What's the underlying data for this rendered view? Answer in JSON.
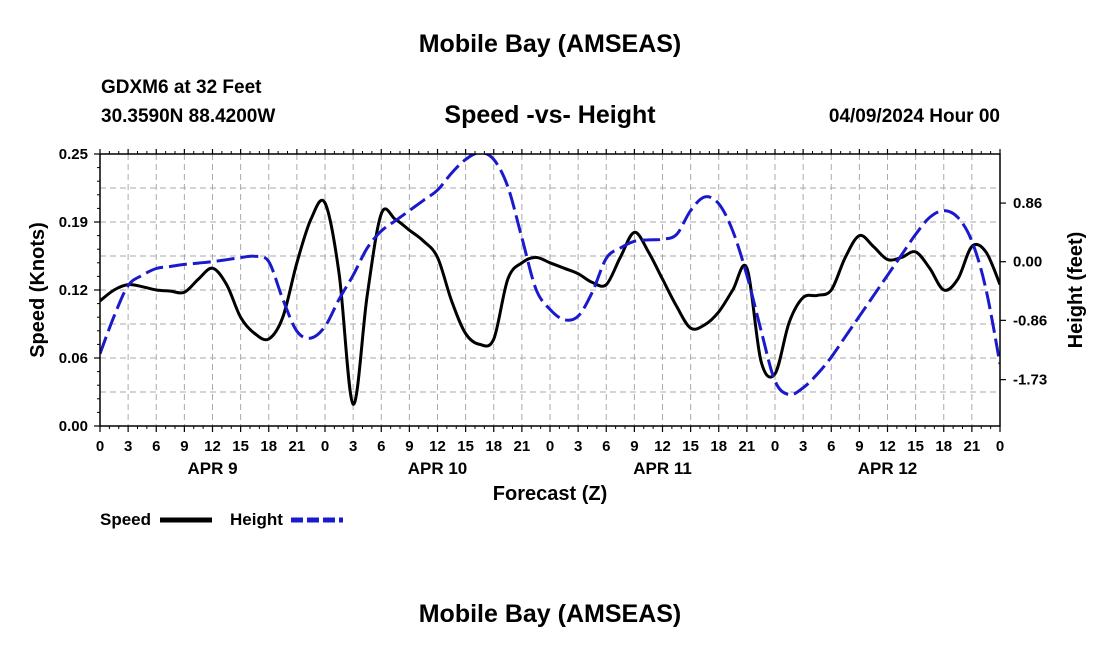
{
  "title": "Mobile Bay (AMSEAS)",
  "station": "GDXM6 at 32 Feet",
  "location": "30.3590N  88.4200W",
  "subtitle": "Speed -vs- Height",
  "run_time": "04/09/2024 Hour 00",
  "bottom_title": "Mobile Bay (AMSEAS)",
  "colors": {
    "speed": "#000000",
    "height": "#1a1acc",
    "grid": "#aaaaaa"
  },
  "chart_data": {
    "type": "line",
    "xlabel": "Forecast (Z)",
    "ylabel": "Speed (Knots)",
    "y2label": "Height (feet)",
    "xlim": [
      0,
      96
    ],
    "ylim": [
      0,
      0.25
    ],
    "y2lim": [
      -2.41,
      1.58
    ],
    "y_ticks": [
      "0.00",
      "0.06",
      "0.12",
      "0.19",
      "0.25"
    ],
    "y_tick_values": [
      0,
      0.0625,
      0.125,
      0.1875,
      0.25
    ],
    "y2_ticks": [
      "0.86",
      "0.00",
      "-0.86",
      "-1.73"
    ],
    "y2_tick_values": [
      0.86,
      0,
      -0.86,
      -1.73
    ],
    "x_tick_labels": [
      "0",
      "3",
      "6",
      "9",
      "12",
      "15",
      "18",
      "21",
      "0",
      "3",
      "6",
      "9",
      "12",
      "15",
      "18",
      "21",
      "0",
      "3",
      "6",
      "9",
      "12",
      "15",
      "18",
      "21",
      "0",
      "3",
      "6",
      "9",
      "12",
      "15",
      "18",
      "21",
      "0"
    ],
    "x_tick_hours": [
      0,
      3,
      6,
      9,
      12,
      15,
      18,
      21,
      24,
      27,
      30,
      33,
      36,
      39,
      42,
      45,
      48,
      51,
      54,
      57,
      60,
      63,
      66,
      69,
      72,
      75,
      78,
      81,
      84,
      87,
      90,
      93,
      96
    ],
    "day_labels": [
      {
        "label": "APR 9",
        "hour": 12
      },
      {
        "label": "APR 10",
        "hour": 36
      },
      {
        "label": "APR 11",
        "hour": 60
      },
      {
        "label": "APR 12",
        "hour": 84
      }
    ],
    "grid": true,
    "legend": [
      "Speed",
      "Height"
    ],
    "series": [
      {
        "name": "Speed",
        "axis": "left",
        "style": "solid",
        "x": [
          0,
          1.5,
          3,
          4.5,
          6,
          7.5,
          9,
          10.5,
          12,
          13.5,
          15,
          16.5,
          18,
          19.5,
          21,
          22.5,
          24,
          25.5,
          27,
          28.5,
          30,
          31.5,
          33,
          34.5,
          36,
          37.5,
          39,
          40.5,
          42,
          43.5,
          45,
          46.5,
          48,
          49.5,
          51,
          52.5,
          54,
          55.5,
          57,
          58.5,
          60,
          61.5,
          63,
          64.5,
          66,
          67.5,
          69,
          70.5,
          72,
          73.5,
          75,
          76.5,
          78,
          79.5,
          81,
          82.5,
          84,
          85.5,
          87,
          88.5,
          90,
          91.5,
          93,
          94.5,
          96
        ],
        "values": [
          0.115,
          0.125,
          0.13,
          0.128,
          0.125,
          0.124,
          0.123,
          0.135,
          0.145,
          0.13,
          0.1,
          0.085,
          0.08,
          0.1,
          0.15,
          0.19,
          0.205,
          0.14,
          0.02,
          0.12,
          0.195,
          0.19,
          0.18,
          0.17,
          0.155,
          0.115,
          0.085,
          0.075,
          0.08,
          0.135,
          0.15,
          0.155,
          0.15,
          0.145,
          0.14,
          0.132,
          0.13,
          0.155,
          0.178,
          0.16,
          0.135,
          0.11,
          0.09,
          0.093,
          0.105,
          0.125,
          0.145,
          0.06,
          0.048,
          0.095,
          0.118,
          0.12,
          0.125,
          0.155,
          0.175,
          0.165,
          0.153,
          0.155,
          0.16,
          0.145,
          0.125,
          0.135,
          0.165,
          0.16,
          0.13
        ]
      },
      {
        "name": "Height",
        "axis": "right",
        "style": "dashed",
        "x": [
          0,
          1.5,
          3,
          4.5,
          6,
          7.5,
          9,
          10.5,
          12,
          13.5,
          15,
          16.5,
          18,
          19.5,
          21,
          22.5,
          24,
          25.5,
          27,
          28.5,
          30,
          31.5,
          33,
          34.5,
          36,
          37.5,
          39,
          40.5,
          42,
          43.5,
          45,
          46.5,
          48,
          49.5,
          51,
          52.5,
          54,
          55.5,
          57,
          58.5,
          60,
          61.5,
          63,
          64.5,
          66,
          67.5,
          69,
          70.5,
          72,
          73.5,
          75,
          76.5,
          78,
          79.5,
          81,
          82.5,
          84,
          85.5,
          87,
          88.5,
          90,
          91.5,
          93,
          94.5,
          96
        ],
        "values": [
          -1.35,
          -0.8,
          -0.35,
          -0.2,
          -0.1,
          -0.07,
          -0.04,
          -0.02,
          0,
          0.03,
          0.06,
          0.08,
          0,
          -0.55,
          -1.02,
          -1.12,
          -0.95,
          -0.55,
          -0.2,
          0.2,
          0.45,
          0.6,
          0.75,
          0.9,
          1.05,
          1.3,
          1.5,
          1.6,
          1.5,
          1.1,
          0.35,
          -0.4,
          -0.7,
          -0.85,
          -0.8,
          -0.45,
          0.05,
          0.2,
          0.3,
          0.32,
          0.33,
          0.4,
          0.75,
          0.95,
          0.85,
          0.45,
          -0.2,
          -1.0,
          -1.75,
          -1.95,
          -1.85,
          -1.65,
          -1.4,
          -1.1,
          -0.8,
          -0.5,
          -0.2,
          0.1,
          0.4,
          0.65,
          0.75,
          0.65,
          0.3,
          -0.4,
          -1.5
        ]
      }
    ]
  }
}
